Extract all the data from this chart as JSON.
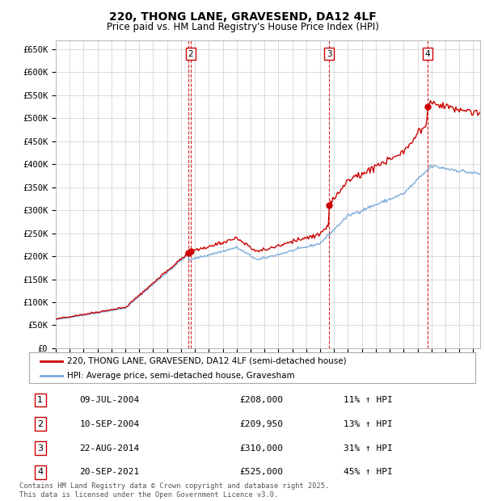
{
  "title": "220, THONG LANE, GRAVESEND, DA12 4LF",
  "subtitle": "Price paid vs. HM Land Registry's House Price Index (HPI)",
  "ylim": [
    0,
    670000
  ],
  "yticks": [
    0,
    50000,
    100000,
    150000,
    200000,
    250000,
    300000,
    350000,
    400000,
    450000,
    500000,
    550000,
    600000,
    650000
  ],
  "ytick_labels": [
    "£0",
    "£50K",
    "£100K",
    "£150K",
    "£200K",
    "£250K",
    "£300K",
    "£350K",
    "£400K",
    "£450K",
    "£500K",
    "£550K",
    "£600K",
    "£650K"
  ],
  "bg_color": "#ffffff",
  "grid_color": "#cccccc",
  "line_color_red": "#cc0000",
  "line_color_blue": "#7aaadd",
  "sale_year_floats": [
    2004.52,
    2004.69,
    2014.64,
    2021.72
  ],
  "sale_prices": [
    208000,
    209950,
    310000,
    525000
  ],
  "sale_labels": [
    "1",
    "2",
    "3",
    "4"
  ],
  "legend_label_red": "220, THONG LANE, GRAVESEND, DA12 4LF (semi-detached house)",
  "legend_label_blue": "HPI: Average price, semi-detached house, Gravesham",
  "footer": "Contains HM Land Registry data © Crown copyright and database right 2025.\nThis data is licensed under the Open Government Licence v3.0.",
  "table_rows": [
    [
      "1",
      "09-JUL-2004",
      "£208,000",
      "11% ↑ HPI"
    ],
    [
      "2",
      "10-SEP-2004",
      "£209,950",
      "13% ↑ HPI"
    ],
    [
      "3",
      "22-AUG-2014",
      "£310,000",
      "31% ↑ HPI"
    ],
    [
      "4",
      "20-SEP-2021",
      "£525,000",
      "45% ↑ HPI"
    ]
  ],
  "xlim_start": 1995,
  "xlim_end": 2025.5
}
